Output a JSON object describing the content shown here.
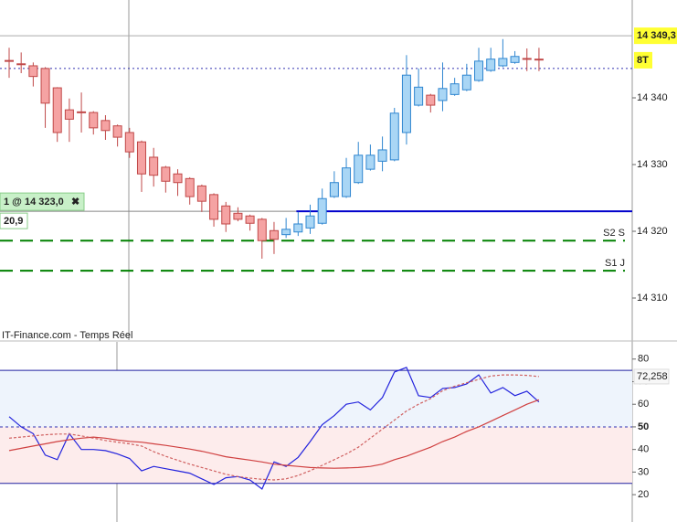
{
  "chart_data": [
    {
      "type": "candlestick",
      "source": "IT-Finance.com - Temps Réel",
      "open": [
        14345.6,
        14345.1,
        14344.8,
        14344.4,
        14341.5,
        14338.2,
        14337.9,
        14337.8,
        14336.6,
        14335.8,
        14334.8,
        14333.4,
        14331.1,
        14329.6,
        14328.6,
        14327.9,
        14326.8,
        14325.5,
        14323.8,
        14322.7,
        14322.3,
        14321.8,
        14320.1,
        14319.5,
        14319.9,
        14320.5,
        14321.2,
        14325.2,
        14325.2,
        14327.3,
        14329.3,
        14330.5,
        14330.7,
        14334.8,
        14338.9,
        14340.4,
        14339.6,
        14340.5,
        14341.2,
        14342.6,
        14344.1,
        14344.8,
        14345.3,
        14345.9,
        14345.8
      ],
      "high": [
        14347.5,
        14346.8,
        14345.3,
        14344.6,
        14341.6,
        14339.9,
        14340.8,
        14338,
        14337.4,
        14336,
        14335.5,
        14333.6,
        14332.5,
        14329.8,
        14329.3,
        14328.1,
        14327,
        14325.7,
        14324.4,
        14323.6,
        14322.5,
        14322,
        14321.4,
        14322,
        14322.9,
        14324,
        14326.4,
        14329,
        14331,
        14333.4,
        14333,
        14334.2,
        14338.5,
        14346.4,
        14344.4,
        14340.6,
        14345.3,
        14343,
        14345.1,
        14347.5,
        14347.5,
        14348.8,
        14347,
        14347.4,
        14347.5
      ],
      "low": [
        14343,
        14343.7,
        14341.7,
        14335.5,
        14333.4,
        14333.4,
        14334.8,
        14334.5,
        14333.7,
        14332.7,
        14331,
        14325.9,
        14326.7,
        14325.8,
        14325.3,
        14324,
        14322.9,
        14320.7,
        14319.9,
        14321.5,
        14320.1,
        14315.9,
        14316.6,
        14319,
        14319.3,
        14319.6,
        14321,
        14325,
        14325,
        14327.1,
        14329.1,
        14329,
        14330.5,
        14333,
        14338.7,
        14337.8,
        14338,
        14340.3,
        14341,
        14342.4,
        14343.9,
        14344.6,
        14345.1,
        14344,
        14344
      ],
      "close": [
        14345.5,
        14345,
        14343.2,
        14339.2,
        14334.8,
        14336.8,
        14337.8,
        14335.5,
        14335.1,
        14334.1,
        14331.9,
        14328.6,
        14328.4,
        14327.5,
        14327.3,
        14325.2,
        14324.5,
        14321.8,
        14321.1,
        14321.8,
        14321.2,
        14318.6,
        14318.8,
        14320.3,
        14321.1,
        14322.3,
        14324.9,
        14327.3,
        14329.5,
        14331.4,
        14331.4,
        14332.2,
        14337.7,
        14343.4,
        14341.6,
        14338.9,
        14341.4,
        14342.1,
        14343.4,
        14345.5,
        14345.8,
        14345.9,
        14346.2,
        14345.8,
        14345.7
      ],
      "up_color": "#a9d6f5",
      "up_edge": "#2f86d0",
      "down_color": "#f5a3a3",
      "down_edge": "#c04848",
      "ylim": [
        14303.7,
        14354.66
      ],
      "yticks": [
        {
          "value": 14310,
          "label": "14 310"
        },
        {
          "value": 14320,
          "label": "14 320"
        },
        {
          "value": 14330,
          "label": "14 330"
        },
        {
          "value": 14340,
          "label": "14 340"
        }
      ],
      "price_marker": {
        "value": 14349.3,
        "label": "14 349,3"
      },
      "last_marker": {
        "value": 14344.4,
        "label": "8T"
      },
      "order": {
        "value": 14323,
        "label": "1 @ 14 323,0",
        "sub_label": "20,9",
        "color": "#0000cc"
      },
      "levels": [
        {
          "name": "S2 S",
          "value": 14318.6
        },
        {
          "name": "S1 J",
          "value": 14314.1
        }
      ],
      "level_color": "#008000"
    },
    {
      "type": "line",
      "ylim": [
        7.9,
        87.6
      ],
      "yticks": [
        20,
        30,
        40,
        50,
        60,
        70,
        80
      ],
      "bands": [
        25,
        50,
        75
      ],
      "series": [
        {
          "color": "#2323dd",
          "style": "solid",
          "values": [
            54.5,
            50,
            47,
            37.5,
            35.5,
            47,
            40,
            40,
            39.5,
            38,
            36,
            30.5,
            32.5,
            31.5,
            30.5,
            29.5,
            27,
            24.5,
            27.5,
            28,
            26.5,
            22.5,
            34.5,
            32.5,
            36.5,
            43.5,
            51,
            55,
            60,
            61,
            57.5,
            63,
            74.3,
            76.3,
            63.8,
            63,
            67,
            67.4,
            69,
            73,
            65,
            67.4,
            63.8,
            65.8,
            61
          ]
        },
        {
          "color": "#d04040",
          "style": "solid",
          "values": [
            39.5,
            40.5,
            41.5,
            42.5,
            43.5,
            44.3,
            45,
            45.5,
            45,
            44.2,
            43.6,
            43.2,
            42.5,
            41.8,
            41,
            40.2,
            39.2,
            38,
            36.8,
            36,
            35.3,
            34.5,
            33.5,
            33,
            32.5,
            32,
            31.8,
            31.7,
            31.8,
            32,
            32.5,
            33.5,
            35.5,
            37,
            39,
            41,
            43.5,
            45.5,
            48,
            50,
            52.5,
            55,
            57.5,
            60,
            62
          ]
        },
        {
          "color": "#d06060",
          "style": "dashed",
          "values": [
            45,
            45.5,
            46,
            46.5,
            46.8,
            46.8,
            46,
            45,
            44,
            43.2,
            42.5,
            41.5,
            39,
            37,
            35.2,
            33.5,
            32,
            30.5,
            29,
            28,
            27.3,
            26.8,
            26.5,
            27,
            28.5,
            30.6,
            33,
            35.5,
            38,
            41,
            45,
            49,
            53,
            57,
            60,
            62.5,
            66,
            68,
            69.5,
            71,
            72.5,
            73,
            73,
            72.8,
            72.258
          ],
          "value_labels": [
            null,
            null,
            null,
            null,
            null,
            null,
            null,
            null,
            null,
            null,
            null,
            null,
            null,
            null,
            null,
            null,
            null,
            null,
            null,
            null,
            null,
            null,
            null,
            null,
            null,
            null,
            null,
            null,
            null,
            null,
            null,
            null,
            null,
            null,
            null,
            null,
            null,
            null,
            null,
            null,
            null,
            null,
            null,
            null,
            "72,258"
          ]
        }
      ]
    }
  ]
}
